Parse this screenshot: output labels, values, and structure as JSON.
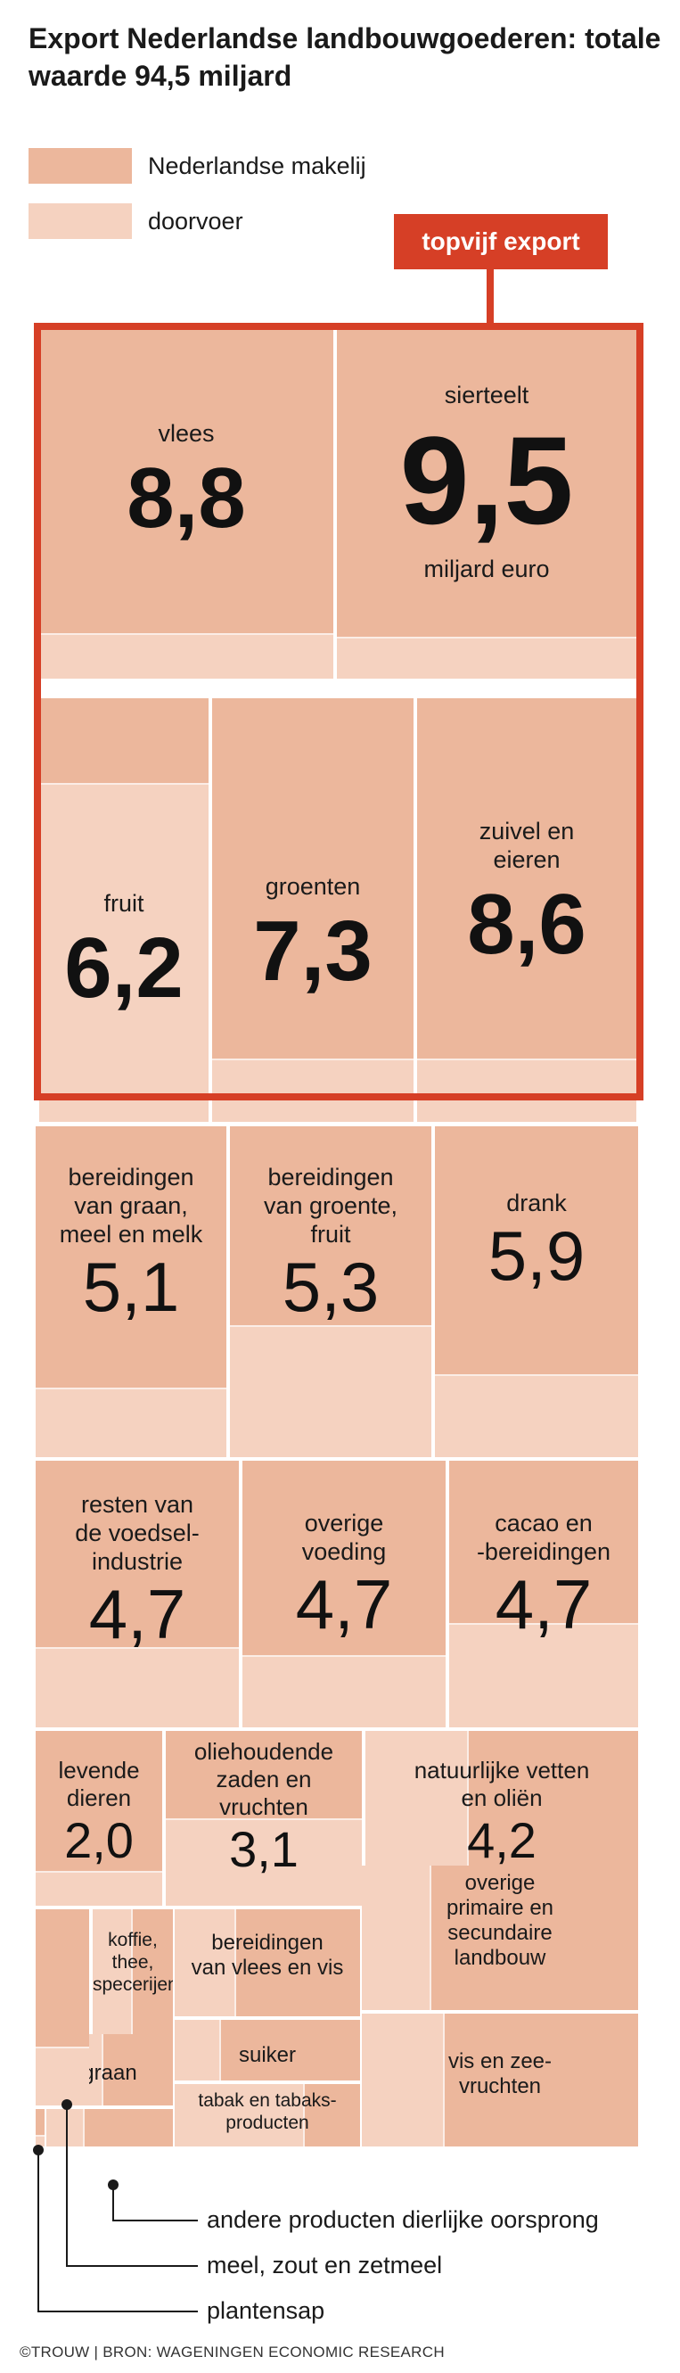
{
  "title": "Export Nederlandse landbouwgoederen: totale waarde 94,5 miljard",
  "legend": [
    {
      "label": "Nederlandse makelij",
      "color": "#ecb79c"
    },
    {
      "label": "doorvoer",
      "color": "#f5d2c0"
    }
  ],
  "colors": {
    "accent": "#d63f26",
    "dutch": "#ecb79c",
    "transit": "#f5d2c0"
  },
  "badge": "topvijf export",
  "unit_label": "miljard euro",
  "source": "©TROUW | BRON: WAGENINGEN ECONOMIC RESEARCH",
  "leader_labels": [
    "andere producten dierlijke oorsprong",
    "meel, zout en zetmeel",
    "plantensap"
  ],
  "chart_data": {
    "type": "treemap",
    "title": "Export Nederlandse landbouwgoederen: totale waarde 94,5 miljard",
    "unit": "miljard euro",
    "total": 94.5,
    "legend_placement": "top-left",
    "series": [
      {
        "name": "Nederlandse makelij"
      },
      {
        "name": "doorvoer"
      }
    ],
    "top5": [
      "sierteelt",
      "vlees",
      "zuivel en eieren",
      "groenten",
      "fruit"
    ],
    "items": [
      {
        "name": "vlees",
        "value": 8.8,
        "value_label": "8,8",
        "dutch_share": 0.87,
        "top5": true
      },
      {
        "name": "sierteelt",
        "value": 9.5,
        "value_label": "9,5",
        "dutch_share": 0.88,
        "top5": true
      },
      {
        "name": "fruit",
        "value": 6.2,
        "value_label": "6,2",
        "dutch_share": 0.2,
        "top5": true
      },
      {
        "name": "groenten",
        "value": 7.3,
        "value_label": "7,3",
        "dutch_share": 0.85,
        "top5": true
      },
      {
        "name": "zuivel en eieren",
        "value": 8.6,
        "value_label": "8,6",
        "dutch_share": 0.85,
        "top5": true
      },
      {
        "name": "bereidingen van graan, meel en melk",
        "value": 5.1,
        "value_label": "5,1",
        "dutch_share": 0.79
      },
      {
        "name": "bereidingen van groente, fruit",
        "value": 5.3,
        "value_label": "5,3",
        "dutch_share": 0.6
      },
      {
        "name": "drank",
        "value": 5.9,
        "value_label": "5,9",
        "dutch_share": 0.75
      },
      {
        "name": "resten van de voedsel-industrie",
        "value": 4.7,
        "value_label": "4,7",
        "dutch_share": 0.7
      },
      {
        "name": "overige voeding",
        "value": 4.7,
        "value_label": "4,7",
        "dutch_share": 0.73
      },
      {
        "name": "cacao en -bereidingen",
        "value": 4.7,
        "value_label": "4,7",
        "dutch_share": 0.61
      },
      {
        "name": "levende dieren",
        "value": 2.0,
        "value_label": "2,0",
        "dutch_share": 0.8
      },
      {
        "name": "oliehoudende zaden en vruchten",
        "value": 3.1,
        "value_label": "3,1",
        "dutch_share": 0.5
      },
      {
        "name": "natuurlijke vetten en oliën",
        "value": 4.2,
        "value_label": "4,2",
        "dutch_share": 0.62
      },
      {
        "name": "koffie, thee, specerijen",
        "dutch_share": 0.5
      },
      {
        "name": "bereidingen van vlees en vis",
        "dutch_share": 0.67
      },
      {
        "name": "suiker",
        "dutch_share": 0.75
      },
      {
        "name": "tabak en tabaksproducten",
        "dutch_share": 0.3
      },
      {
        "name": "graan",
        "dutch_share": 0.55
      },
      {
        "name": "overige primaire en secundaire landbouw",
        "dutch_share": 0.75
      },
      {
        "name": "vis en zeevruchten",
        "dutch_share": 0.7
      },
      {
        "name": "andere producten dierlijke oorsprong"
      },
      {
        "name": "meel, zout en zetmeel"
      },
      {
        "name": "plantensap"
      }
    ]
  }
}
